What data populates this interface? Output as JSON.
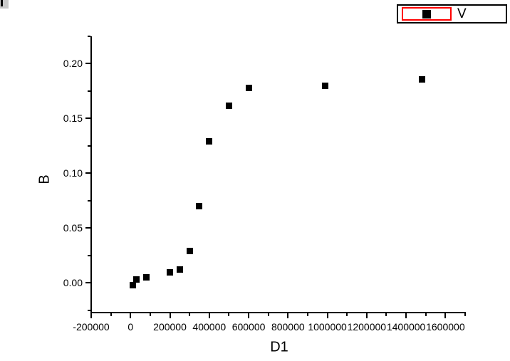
{
  "colors": {
    "background": "#ffffff",
    "axis": "#000000",
    "text": "#000000",
    "marker": "#000000",
    "legend_active_box": "#ff0000",
    "window_fragment": "#c9c9c9"
  },
  "window_fragment": {
    "present": true
  },
  "chart_data": {
    "type": "scatter",
    "title": "",
    "xlabel": "D1",
    "ylabel": "B",
    "xlim": [
      -200000,
      1700000
    ],
    "ylim": [
      -0.027,
      0.225
    ],
    "grid": false,
    "legend": {
      "position": "top-right",
      "entries": [
        {
          "label": "V",
          "marker": "filled-square",
          "marker_color": "#000000",
          "active_indicator_color": "#ff0000"
        }
      ]
    },
    "x_axis": {
      "major_ticks": [
        -200000,
        0,
        200000,
        400000,
        600000,
        800000,
        1000000,
        1200000,
        1400000,
        1600000
      ],
      "tick_labels": [
        "-200000",
        "0",
        "200000",
        "400000",
        "600000",
        "800000",
        "1000000",
        "1200000",
        "1400000",
        "1600000"
      ],
      "minor_tick_step": 100000,
      "ticks_direction": "out"
    },
    "y_axis": {
      "major_ticks": [
        0,
        0.05,
        0.1,
        0.15,
        0.2
      ],
      "tick_labels": [
        "0.00",
        "0.05",
        "0.10",
        "0.15",
        "0.20"
      ],
      "minor_tick_step": 0.025,
      "ticks_direction": "out"
    },
    "series": [
      {
        "name": "V",
        "marker": "square",
        "color": "#000000",
        "points": [
          [
            10000,
            -0.002
          ],
          [
            30000,
            0.003
          ],
          [
            80000,
            0.005
          ],
          [
            200000,
            0.01
          ],
          [
            250000,
            0.012
          ],
          [
            300000,
            0.029
          ],
          [
            350000,
            0.07
          ],
          [
            400000,
            0.129
          ],
          [
            500000,
            0.162
          ],
          [
            600000,
            0.178
          ],
          [
            990000,
            0.18
          ],
          [
            1480000,
            0.186
          ]
        ]
      }
    ]
  }
}
